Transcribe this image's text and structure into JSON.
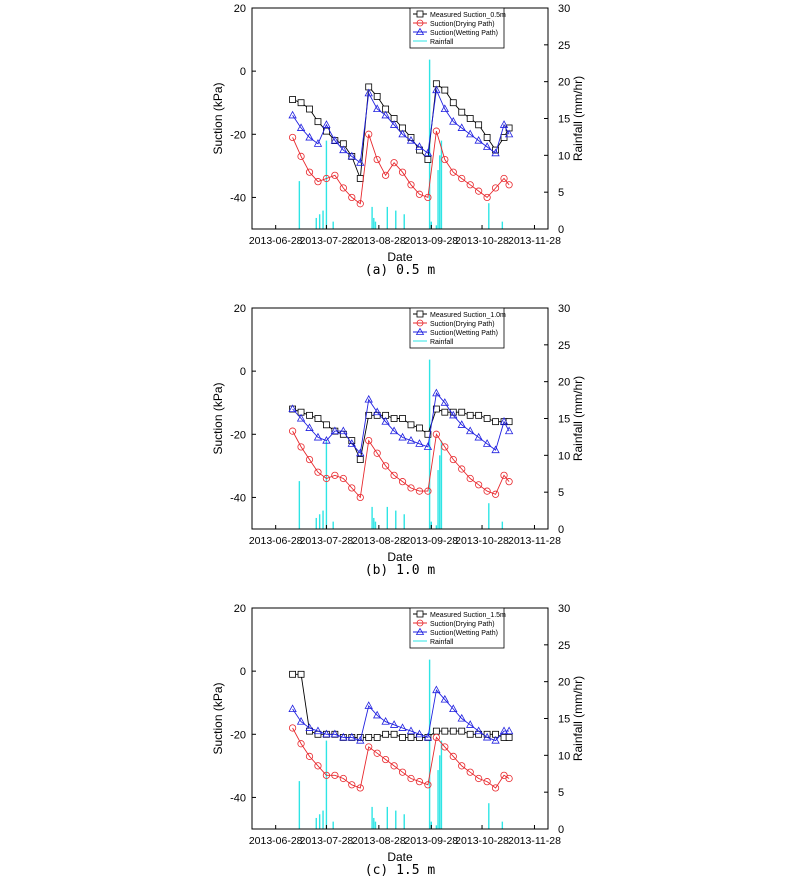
{
  "charts": [
    {
      "caption": "(a)  0.5  m",
      "legend": [
        "Measured Suction_0.5m",
        "Suction(Drying Path)",
        "Suction(Wetting Path)",
        "Rainfall"
      ]
    },
    {
      "caption": "(b)  1.0  m",
      "legend": [
        "Measured Suction_1.0m",
        "Suction(Drying Path)",
        "Suction(Wetting Path)",
        "Rainfall"
      ]
    },
    {
      "caption": "(c)  1.5  m",
      "legend": [
        "Measured Suction_1.5m",
        "Suction(Drying Path)",
        "Suction(Wetting Path)",
        "Rainfall"
      ]
    }
  ],
  "colors": {
    "measured": "#000000",
    "drying": "#e8282d",
    "wetting": "#2020e0",
    "rainfall": "#2ee5e5"
  },
  "chart_data": [
    {
      "type": "line",
      "xlabel": "Date",
      "ylabel": "Suction (kPa)",
      "y2label": "Rainfall (mm/hr)",
      "xticks": [
        "2013-06-28",
        "2013-07-28",
        "2013-08-28",
        "2013-09-28",
        "2013-10-28",
        "2013-11-28"
      ],
      "ylim": [
        -50,
        20
      ],
      "yticks": [
        -40,
        -20,
        0,
        20
      ],
      "y2lim": [
        0,
        30
      ],
      "y2ticks": [
        0,
        5,
        10,
        15,
        20,
        25,
        30
      ],
      "series": [
        {
          "name": "Measured Suction_0.5m",
          "marker": "square",
          "x": [
            "2013-07-08",
            "2013-07-13",
            "2013-07-18",
            "2013-07-23",
            "2013-07-28",
            "2013-08-02",
            "2013-08-07",
            "2013-08-12",
            "2013-08-17",
            "2013-08-22",
            "2013-08-27",
            "2013-09-01",
            "2013-09-06",
            "2013-09-11",
            "2013-09-16",
            "2013-09-21",
            "2013-09-26",
            "2013-10-01",
            "2013-10-06",
            "2013-10-11",
            "2013-10-16",
            "2013-10-21",
            "2013-10-26",
            "2013-10-31",
            "2013-11-05",
            "2013-11-10",
            "2013-11-13"
          ],
          "y": [
            -9,
            -10,
            -12,
            -16,
            -19,
            -22,
            -23,
            -27,
            -34,
            -5,
            -8,
            -12,
            -15,
            -18,
            -21,
            -25,
            -28,
            -4,
            -6,
            -10,
            -13,
            -15,
            -17,
            -21,
            -25,
            -21,
            -18
          ]
        },
        {
          "name": "Suction(Drying Path)",
          "marker": "circle",
          "x": [
            "2013-07-08",
            "2013-07-13",
            "2013-07-18",
            "2013-07-23",
            "2013-07-28",
            "2013-08-02",
            "2013-08-07",
            "2013-08-12",
            "2013-08-17",
            "2013-08-22",
            "2013-08-27",
            "2013-09-01",
            "2013-09-06",
            "2013-09-11",
            "2013-09-16",
            "2013-09-21",
            "2013-09-26",
            "2013-10-01",
            "2013-10-06",
            "2013-10-11",
            "2013-10-16",
            "2013-10-21",
            "2013-10-26",
            "2013-10-31",
            "2013-11-05",
            "2013-11-10",
            "2013-11-13"
          ],
          "y": [
            -21,
            -27,
            -32,
            -35,
            -34,
            -33,
            -37,
            -40,
            -42,
            -20,
            -28,
            -33,
            -29,
            -32,
            -36,
            -39,
            -40,
            -19,
            -28,
            -32,
            -34,
            -36,
            -38,
            -40,
            -37,
            -34,
            -36
          ]
        },
        {
          "name": "Suction(Wetting Path)",
          "marker": "triangle",
          "x": [
            "2013-07-08",
            "2013-07-13",
            "2013-07-18",
            "2013-07-23",
            "2013-07-28",
            "2013-08-02",
            "2013-08-07",
            "2013-08-12",
            "2013-08-17",
            "2013-08-22",
            "2013-08-27",
            "2013-09-01",
            "2013-09-06",
            "2013-09-11",
            "2013-09-16",
            "2013-09-21",
            "2013-09-26",
            "2013-10-01",
            "2013-10-06",
            "2013-10-11",
            "2013-10-16",
            "2013-10-21",
            "2013-10-26",
            "2013-10-31",
            "2013-11-05",
            "2013-11-10",
            "2013-11-13"
          ],
          "y": [
            -14,
            -18,
            -21,
            -23,
            -17,
            -22,
            -25,
            -27,
            -29,
            -7,
            -12,
            -14,
            -17,
            -20,
            -22,
            -24,
            -26,
            -6,
            -12,
            -16,
            -18,
            -20,
            -22,
            -24,
            -26,
            -17,
            -20
          ]
        },
        {
          "name": "Rainfall",
          "axis": "right",
          "type": "bar",
          "x": [
            "2013-07-12",
            "2013-07-22",
            "2013-07-24",
            "2013-07-26",
            "2013-07-28",
            "2013-08-01",
            "2013-08-24",
            "2013-08-25",
            "2013-08-26",
            "2013-09-02",
            "2013-09-07",
            "2013-09-12",
            "2013-09-27",
            "2013-09-28",
            "2013-10-01",
            "2013-10-02",
            "2013-10-03",
            "2013-10-04",
            "2013-11-01",
            "2013-11-09"
          ],
          "y": [
            6.5,
            1.5,
            2,
            2.5,
            12,
            1,
            3,
            1.5,
            1,
            3,
            2.5,
            2,
            23,
            1,
            0.5,
            8,
            10,
            12,
            3.5,
            1
          ]
        }
      ]
    },
    {
      "type": "line",
      "xlabel": "Date",
      "ylabel": "Suction (kPa)",
      "y2label": "Rainfall (mm/hr)",
      "xticks": [
        "2013-06-28",
        "2013-07-28",
        "2013-08-28",
        "2013-09-28",
        "2013-10-28",
        "2013-11-28"
      ],
      "ylim": [
        -50,
        20
      ],
      "yticks": [
        -40,
        -20,
        0,
        20
      ],
      "y2lim": [
        0,
        30
      ],
      "y2ticks": [
        0,
        5,
        10,
        15,
        20,
        25,
        30
      ],
      "series": [
        {
          "name": "Measured Suction_1.0m",
          "marker": "square",
          "x": [
            "2013-07-08",
            "2013-07-13",
            "2013-07-18",
            "2013-07-23",
            "2013-07-28",
            "2013-08-02",
            "2013-08-07",
            "2013-08-12",
            "2013-08-17",
            "2013-08-22",
            "2013-08-27",
            "2013-09-01",
            "2013-09-06",
            "2013-09-11",
            "2013-09-16",
            "2013-09-21",
            "2013-09-26",
            "2013-10-01",
            "2013-10-06",
            "2013-10-11",
            "2013-10-16",
            "2013-10-21",
            "2013-10-26",
            "2013-10-31",
            "2013-11-05",
            "2013-11-10",
            "2013-11-13"
          ],
          "y": [
            -12,
            -13,
            -14,
            -15,
            -17,
            -19,
            -20,
            -22,
            -28,
            -14,
            -14,
            -14,
            -15,
            -15,
            -17,
            -18,
            -20,
            -12,
            -13,
            -13,
            -13,
            -14,
            -14,
            -15,
            -16,
            -16,
            -16
          ]
        },
        {
          "name": "Suction(Drying Path)",
          "marker": "circle",
          "x": [
            "2013-07-08",
            "2013-07-13",
            "2013-07-18",
            "2013-07-23",
            "2013-07-28",
            "2013-08-02",
            "2013-08-07",
            "2013-08-12",
            "2013-08-17",
            "2013-08-22",
            "2013-08-27",
            "2013-09-01",
            "2013-09-06",
            "2013-09-11",
            "2013-09-16",
            "2013-09-21",
            "2013-09-26",
            "2013-10-01",
            "2013-10-06",
            "2013-10-11",
            "2013-10-16",
            "2013-10-21",
            "2013-10-26",
            "2013-10-31",
            "2013-11-05",
            "2013-11-10",
            "2013-11-13"
          ],
          "y": [
            -19,
            -24,
            -28,
            -32,
            -34,
            -33,
            -34,
            -37,
            -40,
            -22,
            -26,
            -30,
            -33,
            -35,
            -37,
            -38,
            -38,
            -20,
            -24,
            -28,
            -31,
            -34,
            -36,
            -38,
            -39,
            -33,
            -35
          ]
        },
        {
          "name": "Suction(Wetting Path)",
          "marker": "triangle",
          "x": [
            "2013-07-08",
            "2013-07-13",
            "2013-07-18",
            "2013-07-23",
            "2013-07-28",
            "2013-08-02",
            "2013-08-07",
            "2013-08-12",
            "2013-08-17",
            "2013-08-22",
            "2013-08-27",
            "2013-09-01",
            "2013-09-06",
            "2013-09-11",
            "2013-09-16",
            "2013-09-21",
            "2013-09-26",
            "2013-10-01",
            "2013-10-06",
            "2013-10-11",
            "2013-10-16",
            "2013-10-21",
            "2013-10-26",
            "2013-10-31",
            "2013-11-05",
            "2013-11-10",
            "2013-11-13"
          ],
          "y": [
            -12,
            -15,
            -18,
            -21,
            -22,
            -19,
            -19,
            -23,
            -26,
            -9,
            -13,
            -16,
            -19,
            -21,
            -22,
            -23,
            -24,
            -7,
            -10,
            -14,
            -17,
            -19,
            -21,
            -23,
            -25,
            -16,
            -19
          ]
        },
        {
          "name": "Rainfall",
          "axis": "right",
          "type": "bar",
          "x": [
            "2013-07-12",
            "2013-07-22",
            "2013-07-24",
            "2013-07-26",
            "2013-07-28",
            "2013-08-01",
            "2013-08-24",
            "2013-08-25",
            "2013-08-26",
            "2013-09-02",
            "2013-09-07",
            "2013-09-12",
            "2013-09-27",
            "2013-09-28",
            "2013-10-01",
            "2013-10-02",
            "2013-10-03",
            "2013-10-04",
            "2013-11-01",
            "2013-11-09"
          ],
          "y": [
            6.5,
            1.5,
            2,
            2.5,
            12,
            1,
            3,
            1.5,
            1,
            3,
            2.5,
            2,
            23,
            1,
            0.5,
            8,
            10,
            12,
            3.5,
            1
          ]
        }
      ]
    },
    {
      "type": "line",
      "xlabel": "Date",
      "ylabel": "Suction (kPa)",
      "y2label": "Rainfall (mm/hr)",
      "xticks": [
        "2013-06-28",
        "2013-07-28",
        "2013-08-28",
        "2013-09-28",
        "2013-10-28",
        "2013-11-28"
      ],
      "ylim": [
        -50,
        20
      ],
      "yticks": [
        -40,
        -20,
        0,
        20
      ],
      "y2lim": [
        0,
        30
      ],
      "y2ticks": [
        0,
        5,
        10,
        15,
        20,
        25,
        30
      ],
      "series": [
        {
          "name": "Measured Suction_1.5m",
          "marker": "square",
          "x": [
            "2013-07-08",
            "2013-07-13",
            "2013-07-18",
            "2013-07-23",
            "2013-07-28",
            "2013-08-02",
            "2013-08-07",
            "2013-08-12",
            "2013-08-17",
            "2013-08-22",
            "2013-08-27",
            "2013-09-01",
            "2013-09-06",
            "2013-09-11",
            "2013-09-16",
            "2013-09-21",
            "2013-09-26",
            "2013-10-01",
            "2013-10-06",
            "2013-10-11",
            "2013-10-16",
            "2013-10-21",
            "2013-10-26",
            "2013-10-31",
            "2013-11-05",
            "2013-11-10",
            "2013-11-13"
          ],
          "y": [
            -1,
            -1,
            -19,
            -20,
            -20,
            -20,
            -21,
            -21,
            -21,
            -21,
            -21,
            -20,
            -20,
            -21,
            -21,
            -21,
            -21,
            -19,
            -19,
            -19,
            -19,
            -20,
            -20,
            -20,
            -20,
            -21,
            -21
          ]
        },
        {
          "name": "Suction(Drying Path)",
          "marker": "circle",
          "x": [
            "2013-07-08",
            "2013-07-13",
            "2013-07-18",
            "2013-07-23",
            "2013-07-28",
            "2013-08-02",
            "2013-08-07",
            "2013-08-12",
            "2013-08-17",
            "2013-08-22",
            "2013-08-27",
            "2013-09-01",
            "2013-09-06",
            "2013-09-11",
            "2013-09-16",
            "2013-09-21",
            "2013-09-26",
            "2013-10-01",
            "2013-10-06",
            "2013-10-11",
            "2013-10-16",
            "2013-10-21",
            "2013-10-26",
            "2013-10-31",
            "2013-11-05",
            "2013-11-10",
            "2013-11-13"
          ],
          "y": [
            -18,
            -23,
            -27,
            -30,
            -33,
            -33,
            -34,
            -36,
            -37,
            -24,
            -26,
            -28,
            -30,
            -32,
            -34,
            -35,
            -36,
            -21,
            -24,
            -27,
            -30,
            -32,
            -34,
            -35,
            -37,
            -33,
            -34
          ]
        },
        {
          "name": "Suction(Wetting Path)",
          "marker": "triangle",
          "x": [
            "2013-07-08",
            "2013-07-13",
            "2013-07-18",
            "2013-07-23",
            "2013-07-28",
            "2013-08-02",
            "2013-08-07",
            "2013-08-12",
            "2013-08-17",
            "2013-08-22",
            "2013-08-27",
            "2013-09-01",
            "2013-09-06",
            "2013-09-11",
            "2013-09-16",
            "2013-09-21",
            "2013-09-26",
            "2013-10-01",
            "2013-10-06",
            "2013-10-11",
            "2013-10-16",
            "2013-10-21",
            "2013-10-26",
            "2013-10-31",
            "2013-11-05",
            "2013-11-10",
            "2013-11-13"
          ],
          "y": [
            -12,
            -16,
            -18,
            -19,
            -20,
            -20,
            -21,
            -21,
            -22,
            -11,
            -14,
            -16,
            -17,
            -18,
            -19,
            -20,
            -21,
            -6,
            -9,
            -12,
            -15,
            -17,
            -19,
            -21,
            -22,
            -19,
            -19
          ]
        },
        {
          "name": "Rainfall",
          "axis": "right",
          "type": "bar",
          "x": [
            "2013-07-12",
            "2013-07-22",
            "2013-07-24",
            "2013-07-26",
            "2013-07-28",
            "2013-08-01",
            "2013-08-24",
            "2013-08-25",
            "2013-08-26",
            "2013-09-02",
            "2013-09-07",
            "2013-09-12",
            "2013-09-27",
            "2013-09-28",
            "2013-10-01",
            "2013-10-02",
            "2013-10-03",
            "2013-10-04",
            "2013-11-01",
            "2013-11-09"
          ],
          "y": [
            6.5,
            1.5,
            2,
            2.5,
            12,
            1,
            3,
            1.5,
            1,
            3,
            2.5,
            2,
            23,
            1,
            0.5,
            8,
            10,
            12,
            3.5,
            1
          ]
        }
      ]
    }
  ]
}
